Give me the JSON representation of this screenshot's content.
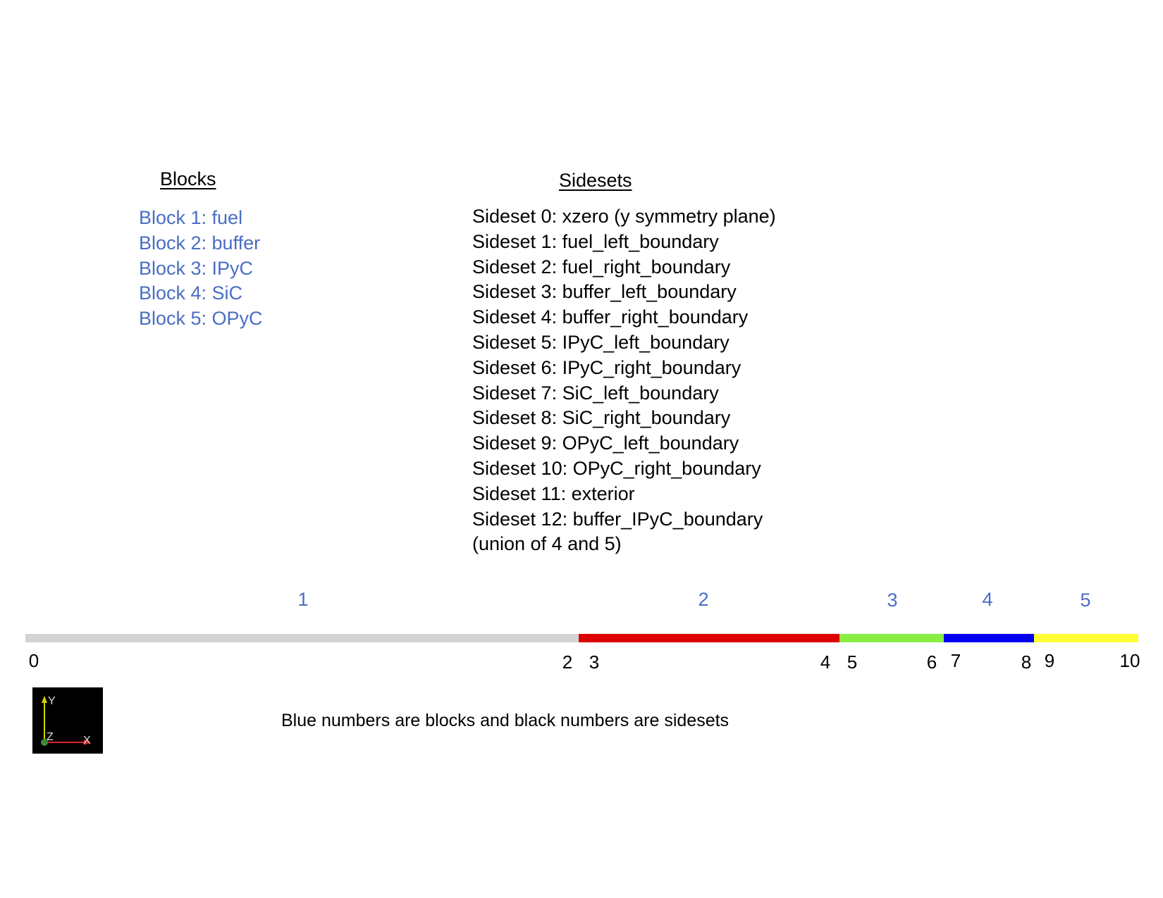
{
  "blocks": {
    "heading": "Blocks",
    "color": "#4a6ec3",
    "items": [
      {
        "label": "Block 1: fuel"
      },
      {
        "label": "Block 2: buffer"
      },
      {
        "label": "Block 3: IPyC"
      },
      {
        "label": "Block 4: SiC"
      },
      {
        "label": "Block 5: OPyC"
      }
    ]
  },
  "sidesets": {
    "heading": "Sidesets",
    "items": [
      {
        "label": "Sideset 0: xzero (y symmetry plane)"
      },
      {
        "label": "Sideset 1: fuel_left_boundary"
      },
      {
        "label": "Sideset 2: fuel_right_boundary"
      },
      {
        "label": "Sideset 3: buffer_left_boundary"
      },
      {
        "label": "Sideset 4: buffer_right_boundary"
      },
      {
        "label": "Sideset 5: IPyC_left_boundary"
      },
      {
        "label": "Sideset 6: IPyC_right_boundary"
      },
      {
        "label": "Sideset 7: SiC_left_boundary"
      },
      {
        "label": "Sideset 8: SiC_right_boundary"
      },
      {
        "label": "Sideset 9: OPyC_left_boundary"
      },
      {
        "label": "Sideset 10: OPyC_right_boundary"
      },
      {
        "label": "Sideset 11: exterior"
      },
      {
        "label": "Sideset 12: buffer_IPyC_boundary"
      },
      {
        "label": "(union of 4 and 5)"
      }
    ]
  },
  "mesh": {
    "segments": [
      {
        "block": "1",
        "color": "#d3d3d3"
      },
      {
        "block": "2",
        "color": "#dd0000"
      },
      {
        "block": "3",
        "color": "#88ee44"
      },
      {
        "block": "4",
        "color": "#0000ee"
      },
      {
        "block": "5",
        "color": "#ffff33"
      }
    ],
    "block_label_color": "#4a6ec3",
    "sideset_labels": [
      "0",
      "2",
      "3",
      "4",
      "5",
      "6",
      "7",
      "8",
      "9",
      "10"
    ]
  },
  "axes_widget": {
    "y_label": "Y",
    "x_label": "X",
    "z_label": "Z",
    "background": "#000000",
    "y_color": "#d4d400",
    "x_color": "#dd2222",
    "z_color": "#3a8a3a"
  },
  "caption": "Blue numbers are blocks and black numbers are sidesets"
}
